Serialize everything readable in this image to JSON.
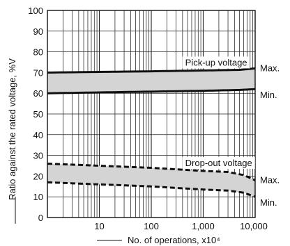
{
  "chart_data": {
    "type": "line",
    "title": "",
    "xlabel": "No. of operations, x10⁴",
    "ylabel": "Ratio against the rated voltage, %V",
    "xscale": "log",
    "xlim": [
      1,
      10000
    ],
    "ylim": [
      0,
      100
    ],
    "grid": true,
    "x_tick_labels": [
      "10",
      "100",
      "1,000",
      "10,000"
    ],
    "y_tick_labels": [
      "0",
      "10",
      "20",
      "30",
      "40",
      "50",
      "60",
      "70",
      "80",
      "90",
      "100"
    ],
    "colors": {
      "band": "#d4d4d4",
      "line": "#111111",
      "grid": "#222222"
    },
    "bands": [
      {
        "name": "Pick-up voltage",
        "line_style": "solid",
        "upper": {
          "label": "Max.",
          "points": [
            [
              1,
              70
            ],
            [
              10,
              70.3
            ],
            [
              100,
              70.6
            ],
            [
              1000,
              71
            ],
            [
              5000,
              71.3
            ],
            [
              10000,
              72
            ]
          ]
        },
        "lower": {
          "label": "Min.",
          "points": [
            [
              1,
              60
            ],
            [
              10,
              60.4
            ],
            [
              100,
              60.8
            ],
            [
              1000,
              61.2
            ],
            [
              5000,
              61.6
            ],
            [
              10000,
              62
            ]
          ]
        }
      },
      {
        "name": "Drop-out voltage",
        "line_style": "dashed",
        "upper": {
          "label": "Max.",
          "points": [
            [
              1,
              26
            ],
            [
              10,
              25
            ],
            [
              100,
              24
            ],
            [
              1000,
              22.5
            ],
            [
              3000,
              22
            ],
            [
              6000,
              20.5
            ],
            [
              10000,
              18
            ]
          ]
        },
        "lower": {
          "label": "Min.",
          "points": [
            [
              1,
              17
            ],
            [
              10,
              16
            ],
            [
              100,
              15
            ],
            [
              1000,
              13.5
            ],
            [
              3000,
              13
            ],
            [
              6000,
              12
            ],
            [
              10000,
              10
            ]
          ]
        }
      }
    ]
  }
}
